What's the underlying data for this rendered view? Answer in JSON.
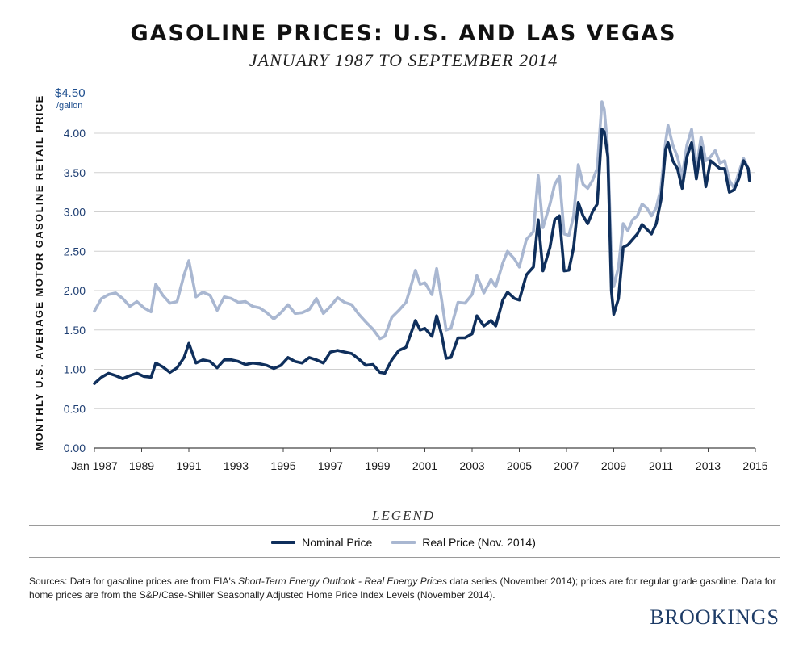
{
  "header": {
    "title": "GASOLINE PRICES: U.S. AND LAS VEGAS",
    "subtitle": "JANUARY 1987 TO SEPTEMBER 2014"
  },
  "legend": {
    "title": "LEGEND",
    "items": [
      {
        "label": "Nominal Price",
        "color": "#0f2f5c"
      },
      {
        "label": "Real Price (Nov. 2014)",
        "color": "#a9b7d1"
      }
    ]
  },
  "sources": {
    "prefix": "Sources: Data for gasoline prices are from EIA's ",
    "italic": "Short-Term Energy Outlook - Real Energy Prices",
    "suffix": " data series (November 2014); prices are for regular grade gasoline. Data for home prices are from the S&P/Case-Shiller Seasonally Adjusted Home Price Index Levels (November 2014)."
  },
  "brand": "BROOKINGS",
  "chart_data": {
    "type": "line",
    "ylabel": "MONTHLY U.S. AVERAGE MOTOR GASOLINE RETAIL PRICE",
    "yunit_top": "$4.50",
    "yunit_sub": "/gallon",
    "ylim": [
      0,
      4.5
    ],
    "yticks": [
      "0.00",
      "0.50",
      "1.00",
      "1.50",
      "2.00",
      "2.50",
      "3.00",
      "3.50",
      "4.00"
    ],
    "xlim": [
      1987,
      2015
    ],
    "xticks": [
      {
        "value": 1987,
        "label": "Jan 1987"
      },
      {
        "value": 1989,
        "label": "1989"
      },
      {
        "value": 1991,
        "label": "1991"
      },
      {
        "value": 1993,
        "label": "1993"
      },
      {
        "value": 1995,
        "label": "1995"
      },
      {
        "value": 1997,
        "label": "1997"
      },
      {
        "value": 1999,
        "label": "1999"
      },
      {
        "value": 2001,
        "label": "2001"
      },
      {
        "value": 2003,
        "label": "2003"
      },
      {
        "value": 2005,
        "label": "2005"
      },
      {
        "value": 2007,
        "label": "2007"
      },
      {
        "value": 2009,
        "label": "2009"
      },
      {
        "value": 2011,
        "label": "2011"
      },
      {
        "value": 2013,
        "label": "2013"
      },
      {
        "value": 2015,
        "label": "2015"
      }
    ],
    "grid": "horizontal",
    "series": [
      {
        "name": "Real Price (Nov. 2014)",
        "color": "#a9b7d1",
        "points": [
          [
            1987.0,
            1.74
          ],
          [
            1987.3,
            1.9
          ],
          [
            1987.6,
            1.95
          ],
          [
            1987.9,
            1.97
          ],
          [
            1988.2,
            1.9
          ],
          [
            1988.5,
            1.8
          ],
          [
            1988.8,
            1.86
          ],
          [
            1989.1,
            1.78
          ],
          [
            1989.4,
            1.73
          ],
          [
            1989.6,
            2.08
          ],
          [
            1989.9,
            1.94
          ],
          [
            1990.2,
            1.84
          ],
          [
            1990.5,
            1.86
          ],
          [
            1990.8,
            2.2
          ],
          [
            1991.0,
            2.38
          ],
          [
            1991.3,
            1.92
          ],
          [
            1991.6,
            1.98
          ],
          [
            1991.9,
            1.94
          ],
          [
            1992.2,
            1.75
          ],
          [
            1992.5,
            1.92
          ],
          [
            1992.8,
            1.9
          ],
          [
            1993.1,
            1.85
          ],
          [
            1993.4,
            1.86
          ],
          [
            1993.7,
            1.8
          ],
          [
            1994.0,
            1.78
          ],
          [
            1994.3,
            1.72
          ],
          [
            1994.6,
            1.64
          ],
          [
            1994.9,
            1.72
          ],
          [
            1995.2,
            1.82
          ],
          [
            1995.5,
            1.71
          ],
          [
            1995.8,
            1.72
          ],
          [
            1996.1,
            1.76
          ],
          [
            1996.4,
            1.9
          ],
          [
            1996.7,
            1.71
          ],
          [
            1997.0,
            1.8
          ],
          [
            1997.3,
            1.91
          ],
          [
            1997.6,
            1.85
          ],
          [
            1997.9,
            1.82
          ],
          [
            1998.2,
            1.7
          ],
          [
            1998.5,
            1.6
          ],
          [
            1998.8,
            1.51
          ],
          [
            1999.1,
            1.39
          ],
          [
            1999.3,
            1.42
          ],
          [
            1999.6,
            1.66
          ],
          [
            1999.9,
            1.75
          ],
          [
            2000.2,
            1.85
          ],
          [
            2000.4,
            2.05
          ],
          [
            2000.6,
            2.26
          ],
          [
            2000.8,
            2.08
          ],
          [
            2001.0,
            2.1
          ],
          [
            2001.3,
            1.95
          ],
          [
            2001.5,
            2.28
          ],
          [
            2001.7,
            1.9
          ],
          [
            2001.9,
            1.5
          ],
          [
            2002.1,
            1.52
          ],
          [
            2002.4,
            1.85
          ],
          [
            2002.7,
            1.84
          ],
          [
            2003.0,
            1.95
          ],
          [
            2003.2,
            2.19
          ],
          [
            2003.5,
            1.97
          ],
          [
            2003.8,
            2.14
          ],
          [
            2004.0,
            2.05
          ],
          [
            2004.3,
            2.35
          ],
          [
            2004.5,
            2.5
          ],
          [
            2004.8,
            2.4
          ],
          [
            2005.0,
            2.3
          ],
          [
            2005.3,
            2.65
          ],
          [
            2005.6,
            2.75
          ],
          [
            2005.8,
            3.46
          ],
          [
            2006.0,
            2.8
          ],
          [
            2006.3,
            3.1
          ],
          [
            2006.5,
            3.35
          ],
          [
            2006.7,
            3.45
          ],
          [
            2006.9,
            2.72
          ],
          [
            2007.1,
            2.7
          ],
          [
            2007.3,
            2.95
          ],
          [
            2007.5,
            3.6
          ],
          [
            2007.7,
            3.35
          ],
          [
            2007.9,
            3.3
          ],
          [
            2008.1,
            3.4
          ],
          [
            2008.3,
            3.55
          ],
          [
            2008.5,
            4.4
          ],
          [
            2008.6,
            4.3
          ],
          [
            2008.75,
            3.8
          ],
          [
            2008.9,
            2.4
          ],
          [
            2009.0,
            2.05
          ],
          [
            2009.2,
            2.3
          ],
          [
            2009.4,
            2.85
          ],
          [
            2009.6,
            2.76
          ],
          [
            2009.8,
            2.9
          ],
          [
            2010.0,
            2.95
          ],
          [
            2010.2,
            3.1
          ],
          [
            2010.4,
            3.05
          ],
          [
            2010.6,
            2.95
          ],
          [
            2010.8,
            3.05
          ],
          [
            2011.0,
            3.3
          ],
          [
            2011.2,
            3.9
          ],
          [
            2011.3,
            4.1
          ],
          [
            2011.5,
            3.85
          ],
          [
            2011.7,
            3.7
          ],
          [
            2011.9,
            3.45
          ],
          [
            2012.1,
            3.85
          ],
          [
            2012.3,
            4.05
          ],
          [
            2012.5,
            3.55
          ],
          [
            2012.7,
            3.95
          ],
          [
            2012.9,
            3.65
          ],
          [
            2013.1,
            3.7
          ],
          [
            2013.3,
            3.78
          ],
          [
            2013.5,
            3.62
          ],
          [
            2013.7,
            3.65
          ],
          [
            2013.9,
            3.4
          ],
          [
            2014.1,
            3.3
          ],
          [
            2014.3,
            3.5
          ],
          [
            2014.5,
            3.68
          ],
          [
            2014.7,
            3.55
          ],
          [
            2014.75,
            3.45
          ]
        ]
      },
      {
        "name": "Nominal Price",
        "color": "#0f2f5c",
        "points": [
          [
            1987.0,
            0.82
          ],
          [
            1987.3,
            0.9
          ],
          [
            1987.6,
            0.95
          ],
          [
            1987.9,
            0.92
          ],
          [
            1988.2,
            0.88
          ],
          [
            1988.5,
            0.92
          ],
          [
            1988.8,
            0.95
          ],
          [
            1989.1,
            0.91
          ],
          [
            1989.4,
            0.9
          ],
          [
            1989.6,
            1.08
          ],
          [
            1989.9,
            1.03
          ],
          [
            1990.2,
            0.96
          ],
          [
            1990.5,
            1.02
          ],
          [
            1990.8,
            1.15
          ],
          [
            1991.0,
            1.33
          ],
          [
            1991.3,
            1.08
          ],
          [
            1991.6,
            1.12
          ],
          [
            1991.9,
            1.1
          ],
          [
            1992.2,
            1.02
          ],
          [
            1992.5,
            1.12
          ],
          [
            1992.8,
            1.12
          ],
          [
            1993.1,
            1.1
          ],
          [
            1993.4,
            1.06
          ],
          [
            1993.7,
            1.08
          ],
          [
            1994.0,
            1.07
          ],
          [
            1994.3,
            1.05
          ],
          [
            1994.6,
            1.01
          ],
          [
            1994.9,
            1.05
          ],
          [
            1995.2,
            1.15
          ],
          [
            1995.5,
            1.1
          ],
          [
            1995.8,
            1.08
          ],
          [
            1996.1,
            1.15
          ],
          [
            1996.4,
            1.12
          ],
          [
            1996.7,
            1.08
          ],
          [
            1997.0,
            1.22
          ],
          [
            1997.3,
            1.24
          ],
          [
            1997.6,
            1.22
          ],
          [
            1997.9,
            1.2
          ],
          [
            1998.2,
            1.13
          ],
          [
            1998.5,
            1.05
          ],
          [
            1998.8,
            1.06
          ],
          [
            1999.1,
            0.96
          ],
          [
            1999.3,
            0.95
          ],
          [
            1999.6,
            1.12
          ],
          [
            1999.9,
            1.24
          ],
          [
            2000.2,
            1.28
          ],
          [
            2000.4,
            1.45
          ],
          [
            2000.6,
            1.62
          ],
          [
            2000.8,
            1.5
          ],
          [
            2001.0,
            1.52
          ],
          [
            2001.3,
            1.42
          ],
          [
            2001.5,
            1.68
          ],
          [
            2001.7,
            1.45
          ],
          [
            2001.9,
            1.14
          ],
          [
            2002.1,
            1.15
          ],
          [
            2002.4,
            1.4
          ],
          [
            2002.7,
            1.4
          ],
          [
            2003.0,
            1.45
          ],
          [
            2003.2,
            1.68
          ],
          [
            2003.5,
            1.55
          ],
          [
            2003.8,
            1.62
          ],
          [
            2004.0,
            1.55
          ],
          [
            2004.3,
            1.88
          ],
          [
            2004.5,
            1.98
          ],
          [
            2004.8,
            1.9
          ],
          [
            2005.0,
            1.88
          ],
          [
            2005.3,
            2.2
          ],
          [
            2005.6,
            2.3
          ],
          [
            2005.8,
            2.9
          ],
          [
            2006.0,
            2.25
          ],
          [
            2006.3,
            2.55
          ],
          [
            2006.5,
            2.9
          ],
          [
            2006.7,
            2.95
          ],
          [
            2006.9,
            2.25
          ],
          [
            2007.1,
            2.26
          ],
          [
            2007.3,
            2.55
          ],
          [
            2007.5,
            3.12
          ],
          [
            2007.7,
            2.95
          ],
          [
            2007.9,
            2.85
          ],
          [
            2008.1,
            3.0
          ],
          [
            2008.3,
            3.1
          ],
          [
            2008.5,
            4.05
          ],
          [
            2008.6,
            4.02
          ],
          [
            2008.75,
            3.7
          ],
          [
            2008.9,
            2.0
          ],
          [
            2009.0,
            1.7
          ],
          [
            2009.2,
            1.9
          ],
          [
            2009.4,
            2.55
          ],
          [
            2009.6,
            2.58
          ],
          [
            2009.8,
            2.65
          ],
          [
            2010.0,
            2.72
          ],
          [
            2010.2,
            2.84
          ],
          [
            2010.4,
            2.78
          ],
          [
            2010.6,
            2.72
          ],
          [
            2010.8,
            2.85
          ],
          [
            2011.0,
            3.15
          ],
          [
            2011.2,
            3.8
          ],
          [
            2011.3,
            3.88
          ],
          [
            2011.5,
            3.65
          ],
          [
            2011.7,
            3.55
          ],
          [
            2011.9,
            3.3
          ],
          [
            2012.1,
            3.7
          ],
          [
            2012.3,
            3.88
          ],
          [
            2012.5,
            3.42
          ],
          [
            2012.7,
            3.82
          ],
          [
            2012.9,
            3.32
          ],
          [
            2013.1,
            3.65
          ],
          [
            2013.3,
            3.6
          ],
          [
            2013.5,
            3.55
          ],
          [
            2013.7,
            3.55
          ],
          [
            2013.9,
            3.25
          ],
          [
            2014.1,
            3.28
          ],
          [
            2014.3,
            3.42
          ],
          [
            2014.5,
            3.65
          ],
          [
            2014.7,
            3.55
          ],
          [
            2014.75,
            3.4
          ]
        ]
      }
    ]
  }
}
